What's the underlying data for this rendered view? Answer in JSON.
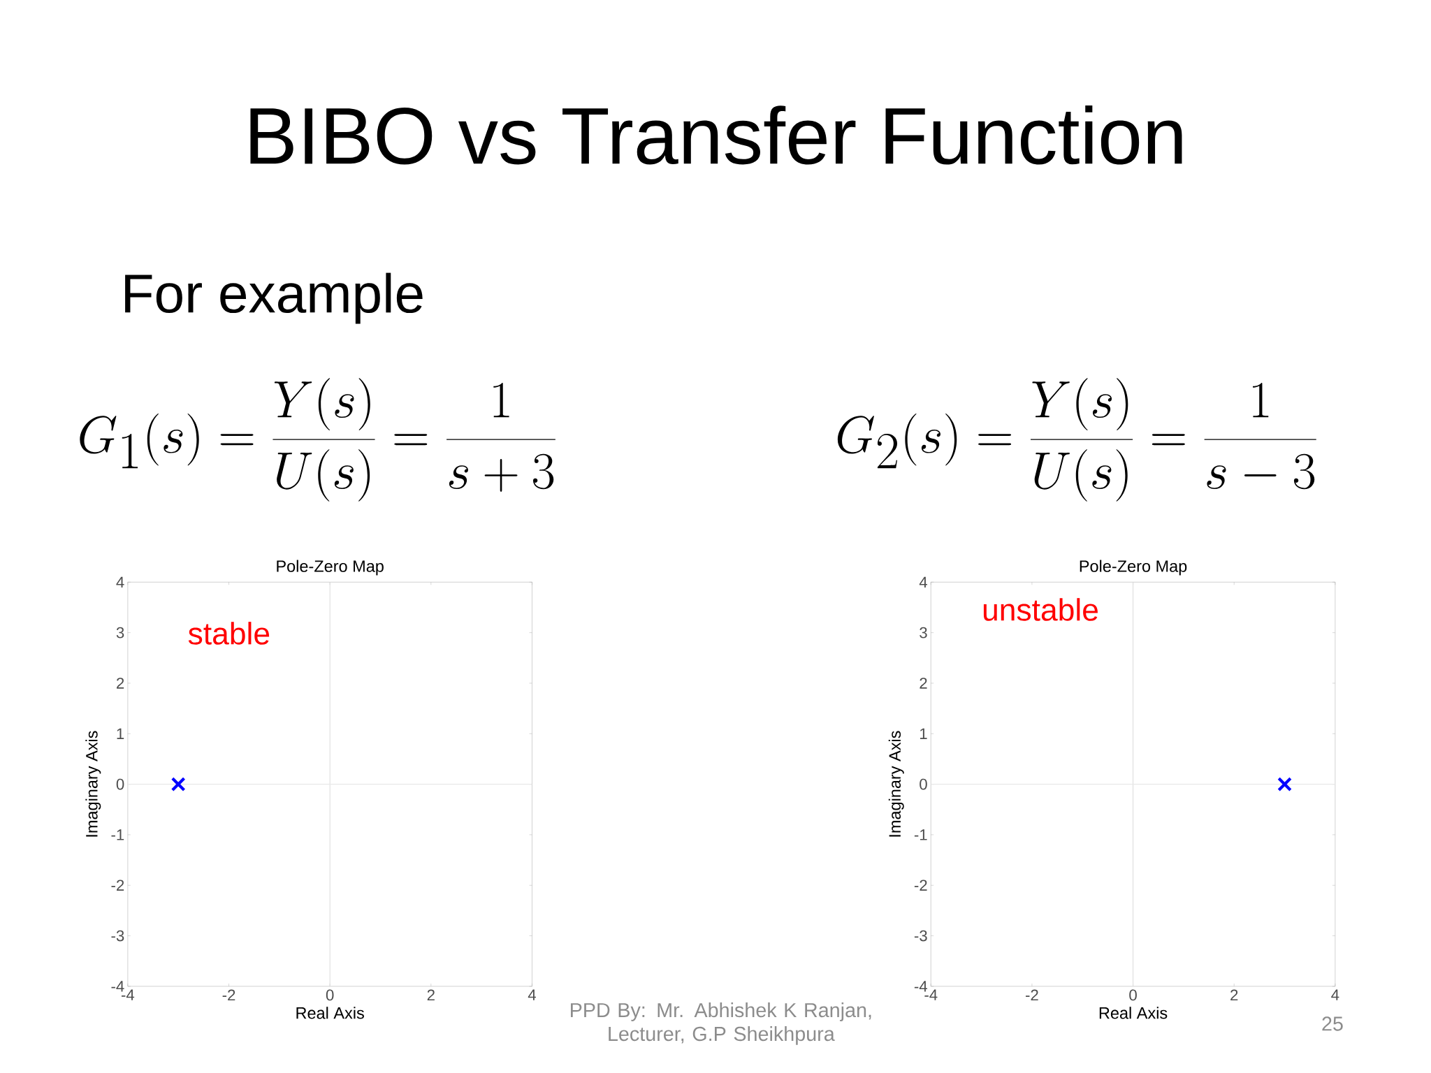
{
  "chart_data": [
    {
      "type": "scatter",
      "title": "Pole-Zero Map",
      "xlabel": "Real Axis",
      "ylabel": "Imaginary Axis",
      "x": [
        -3
      ],
      "values": [
        0
      ],
      "color": "#0000ff",
      "marker": "cross",
      "xlim": [
        -4,
        4
      ],
      "ylim": [
        -4,
        4
      ],
      "xticks": [
        -4,
        -2,
        0,
        2,
        4
      ],
      "yticks": [
        -4,
        -3,
        -2,
        -1,
        0,
        1,
        2,
        3,
        4
      ],
      "ref_lines": [
        {
          "axis": "x",
          "value": 0,
          "color": "#dcdcdc"
        },
        {
          "axis": "y",
          "value": 0,
          "color": "#e8e8e8"
        }
      ],
      "annotations": [
        "BIBO vs Transfer Function",
        "For example",
        "G_1(s)=\\frac{Y(s)}{U(s)}=\\frac{1}{s+3}",
        "stable",
        "PPD By: Mr. Abhishek K Ranjan, Lecturer, G.P Sheikhpura",
        "25"
      ]
    },
    {
      "type": "scatter",
      "title": "Pole-Zero Map",
      "xlabel": "Real Axis",
      "ylabel": "Imaginary Axis",
      "x": [
        3
      ],
      "values": [
        0
      ],
      "color": "#0000ff",
      "marker": "cross",
      "xlim": [
        -4,
        4
      ],
      "ylim": [
        -4,
        4
      ],
      "xticks": [
        -4,
        -2,
        0,
        2,
        4
      ],
      "yticks": [
        -4,
        -3,
        -2,
        -1,
        0,
        1,
        2,
        3,
        4
      ],
      "ref_lines": [
        {
          "axis": "x",
          "value": 0,
          "color": "#dcdcdc"
        },
        {
          "axis": "y",
          "value": 0,
          "color": "#e8e8e8"
        }
      ],
      "annotations": [
        "G_2(s)=\\frac{Y(s)}{U(s)}=\\frac{1}{s-3}",
        "unstable"
      ]
    }
  ]
}
